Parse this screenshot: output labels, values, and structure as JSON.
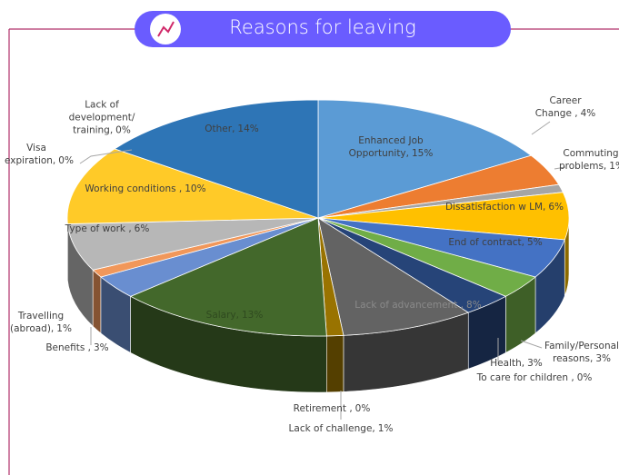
{
  "chart_data": {
    "type": "pie",
    "three_d": true,
    "title": "Reasons for leaving",
    "categories": [
      "Enhanced Job Opportunity,",
      "Career Change ,",
      "Commuting problems,",
      "Dissatisfaction w LM,",
      "End of contract,",
      "Family/Personal reasons,",
      "Health,",
      "To care for children ,",
      "Lack of advancement ,",
      "Lack of challenge,",
      "Retirement ,",
      "Salary,",
      "Benefits ,",
      "Travelling (abroad),",
      "Type of work ,",
      "Working conditions ,",
      "Visa expiration,",
      "Lack of development/ training,",
      "Other,"
    ],
    "values": [
      15,
      4,
      1,
      6,
      5,
      3,
      3,
      0,
      8,
      1,
      0,
      13,
      3,
      1,
      6,
      10,
      0,
      0,
      14
    ],
    "value_labels": [
      "15%",
      "4%",
      "1%",
      "6%",
      "5%",
      "3%",
      "3%",
      "0%",
      "8%",
      "1%",
      "0%",
      "13%",
      "3%",
      "1%",
      "6%",
      "10%",
      "0%",
      "0%",
      "14%"
    ],
    "colors": [
      "#5b9bd5",
      "#ed7d31",
      "#a5a5a5",
      "#ffc000",
      "#4472c4",
      "#70ad47",
      "#264478",
      "#9e480e",
      "#636363",
      "#997300",
      "#255e91",
      "#43682b",
      "#698ed0",
      "#f1975a",
      "#b7b7b7",
      "#ffca28",
      "#2c5ca0",
      "#7f6000",
      "#2e75b6"
    ]
  }
}
